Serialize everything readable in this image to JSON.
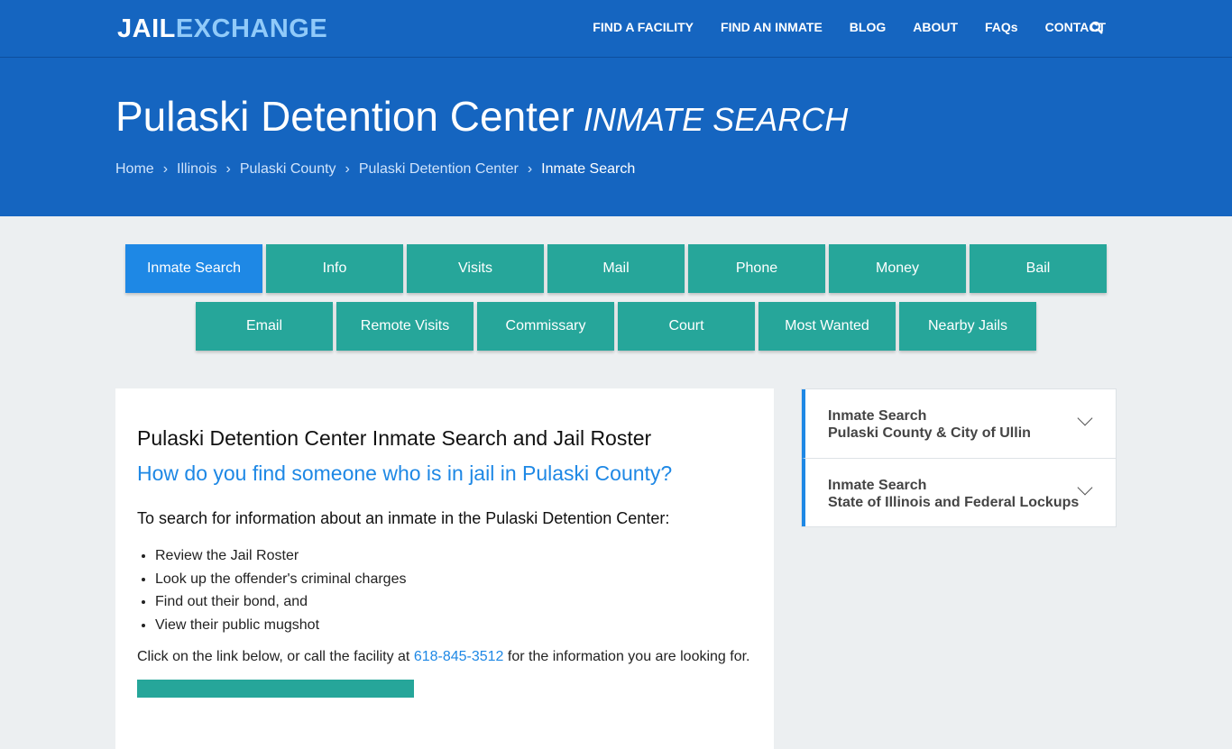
{
  "logo": {
    "part1": "JAIL",
    "part2": "EXCHANGE"
  },
  "nav": [
    "FIND A FACILITY",
    "FIND AN INMATE",
    "BLOG",
    "ABOUT",
    "FAQs",
    "CONTACT"
  ],
  "hero": {
    "title": "Pulaski Detention Center",
    "subtitle": "INMATE SEARCH"
  },
  "breadcrumb": [
    "Home",
    "Illinois",
    "Pulaski County",
    "Pulaski Detention Center",
    "Inmate Search"
  ],
  "tabs_row1": [
    "Inmate Search",
    "Info",
    "Visits",
    "Mail",
    "Phone",
    "Money",
    "Bail"
  ],
  "tabs_row2": [
    "Email",
    "Remote Visits",
    "Commissary",
    "Court",
    "Most Wanted",
    "Nearby Jails"
  ],
  "main": {
    "heading": "Pulaski Detention Center Inmate Search and Jail Roster",
    "question": "How do you find someone who is in jail in Pulaski County?",
    "intro": "To search for information about an inmate in the Pulaski Detention Center:",
    "list": [
      "Review the Jail Roster",
      "Look up the offender's criminal charges",
      "Find out their bond, and",
      "View their public mugshot"
    ],
    "para_before": "Click on the link below, or call the facility at ",
    "phone": "618-845-3512",
    "para_after": " for the information you are looking for."
  },
  "sidebar": [
    {
      "title": "Inmate Search",
      "sub": "Pulaski County & City of Ullin"
    },
    {
      "title": "Inmate Search",
      "sub": "State of Illinois and Federal Lockups"
    }
  ]
}
